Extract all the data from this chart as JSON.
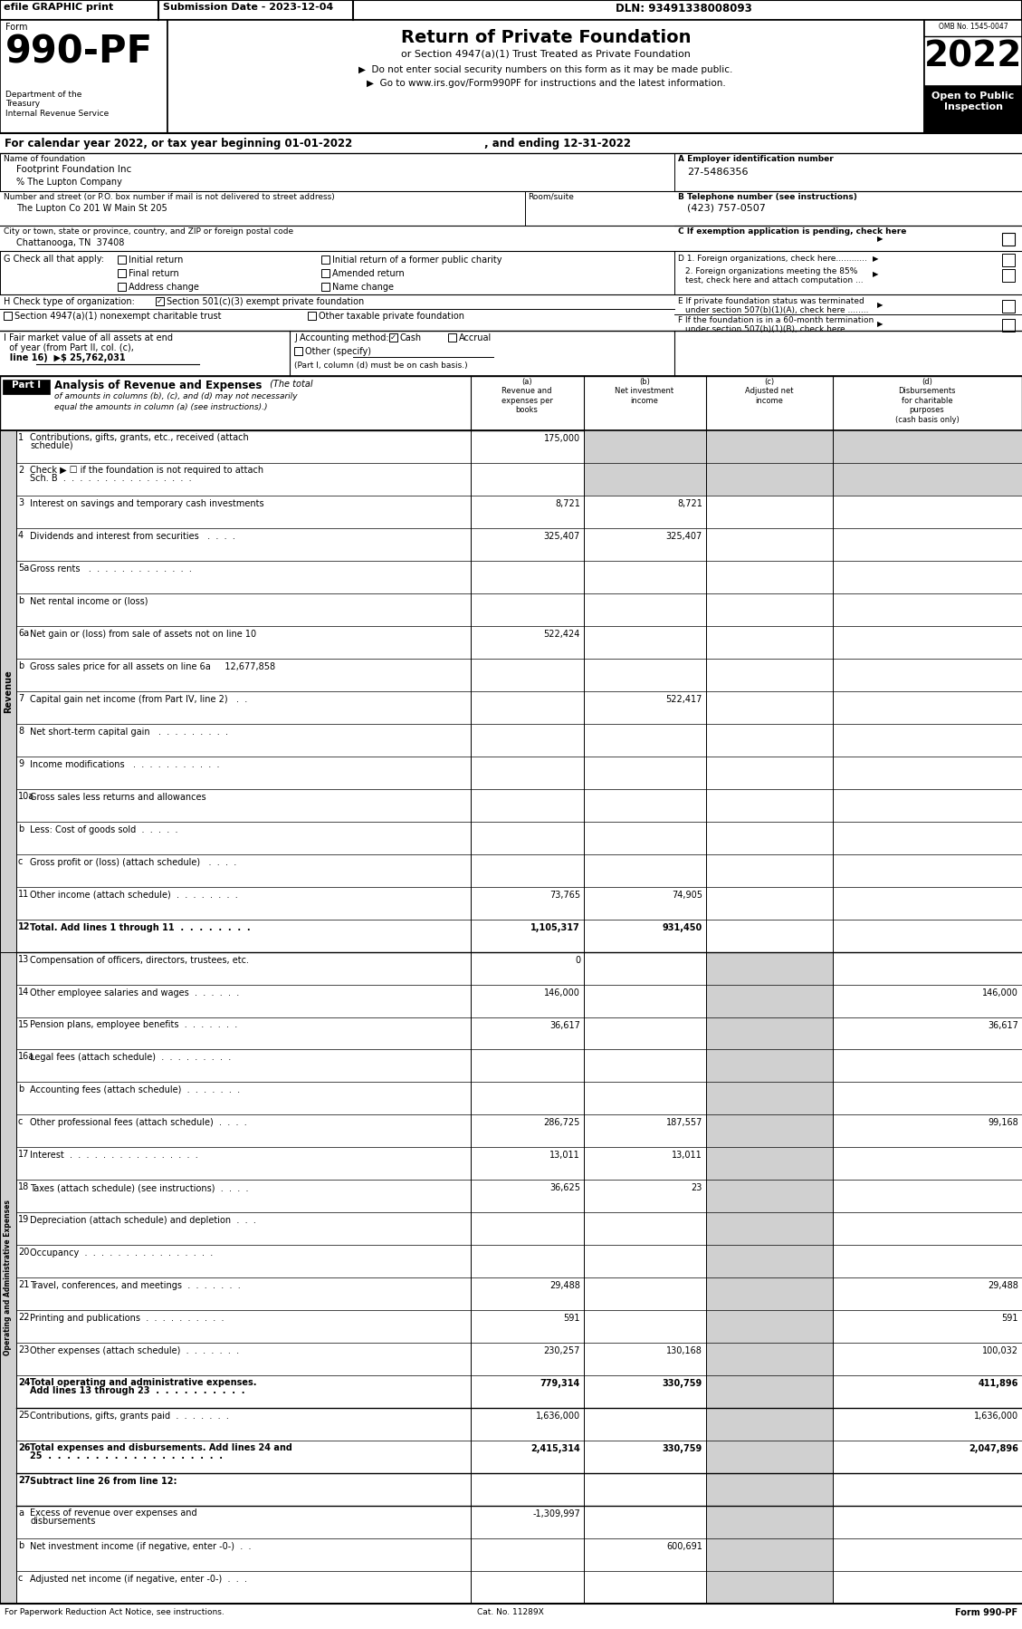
{
  "header_bar": {
    "efile": "efile GRAPHIC print",
    "submission": "Submission Date - 2023-12-04",
    "dln": "DLN: 93491338008093"
  },
  "form_number": "990-PF",
  "form_label": "Form",
  "title": "Return of Private Foundation",
  "subtitle": "or Section 4947(a)(1) Trust Treated as Private Foundation",
  "bullet1": "▶  Do not enter social security numbers on this form as it may be made public.",
  "bullet2": "▶  Go to www.irs.gov/Form990PF for instructions and the latest information.",
  "year": "2022",
  "omb": "OMB No. 1545-0047",
  "calendar_line": "For calendar year 2022, or tax year beginning 01-01-2022",
  "calendar_end": ", and ending 12-31-2022",
  "name_label": "Name of foundation",
  "name_value": "Footprint Foundation Inc",
  "care_of": "% The Lupton Company",
  "street_label": "Number and street (or P.O. box number if mail is not delivered to street address)",
  "street_value": "The Lupton Co 201 W Main St 205",
  "room_label": "Room/suite",
  "city_label": "City or town, state or province, country, and ZIP or foreign postal code",
  "city_value": "Chattanooga, TN  37408",
  "ein_label": "A Employer identification number",
  "ein_value": "27-5486356",
  "phone_label": "B Telephone number (see instructions)",
  "phone_value": "(423) 757-0507",
  "exemption_label": "C If exemption application is pending, check here",
  "footer_left": "For Paperwork Reduction Act Notice, see instructions.",
  "footer_cat": "Cat. No. 11289X",
  "footer_right": "Form 990-PF",
  "rows": [
    {
      "num": "1",
      "label": "Contributions, gifts, grants, etc., received (attach\nschedule)",
      "a": "175,000",
      "b": "",
      "c": "",
      "d": "",
      "gray_bcd": true
    },
    {
      "num": "2",
      "label": "Check ▶ ☐ if the foundation is not required to attach\nSch. B  .  .  .  .  .  .  .  .  .  .  .  .  .  .  .  .",
      "a": "",
      "b": "",
      "c": "",
      "d": "",
      "gray_bcd": true
    },
    {
      "num": "3",
      "label": "Interest on savings and temporary cash investments",
      "a": "8,721",
      "b": "8,721",
      "c": "",
      "d": "",
      "gray_bcd": false
    },
    {
      "num": "4",
      "label": "Dividends and interest from securities   .  .  .  .",
      "a": "325,407",
      "b": "325,407",
      "c": "",
      "d": "",
      "gray_bcd": false
    },
    {
      "num": "5a",
      "label": "Gross rents   .  .  .  .  .  .  .  .  .  .  .  .  .",
      "a": "",
      "b": "",
      "c": "",
      "d": "",
      "gray_bcd": false
    },
    {
      "num": "b",
      "label": "Net rental income or (loss)",
      "a": "",
      "b": "",
      "c": "",
      "d": "",
      "gray_bcd": false
    },
    {
      "num": "6a",
      "label": "Net gain or (loss) from sale of assets not on line 10",
      "a": "522,424",
      "b": "",
      "c": "",
      "d": "",
      "gray_bcd": false
    },
    {
      "num": "b",
      "label": "Gross sales price for all assets on line 6a     12,677,858",
      "a": "",
      "b": "",
      "c": "",
      "d": "",
      "gray_bcd": false
    },
    {
      "num": "7",
      "label": "Capital gain net income (from Part IV, line 2)   .  .",
      "a": "",
      "b": "522,417",
      "c": "",
      "d": "",
      "gray_bcd": false
    },
    {
      "num": "8",
      "label": "Net short-term capital gain   .  .  .  .  .  .  .  .  .",
      "a": "",
      "b": "",
      "c": "",
      "d": "",
      "gray_bcd": false
    },
    {
      "num": "9",
      "label": "Income modifications   .  .  .  .  .  .  .  .  .  .  .",
      "a": "",
      "b": "",
      "c": "",
      "d": "",
      "gray_bcd": false
    },
    {
      "num": "10a",
      "label": "Gross sales less returns and allowances",
      "a": "",
      "b": "",
      "c": "",
      "d": "",
      "gray_bcd": false
    },
    {
      "num": "b",
      "label": "Less: Cost of goods sold  .  .  .  .  .",
      "a": "",
      "b": "",
      "c": "",
      "d": "",
      "gray_bcd": false
    },
    {
      "num": "c",
      "label": "Gross profit or (loss) (attach schedule)   .  .  .  .",
      "a": "",
      "b": "",
      "c": "",
      "d": "",
      "gray_bcd": false
    },
    {
      "num": "11",
      "label": "Other income (attach schedule)  .  .  .  .  .  .  .  .",
      "a": "73,765",
      "b": "74,905",
      "c": "",
      "d": "",
      "gray_bcd": false
    },
    {
      "num": "12",
      "label": "Total. Add lines 1 through 11  .  .  .  .  .  .  .  .",
      "a": "1,105,317",
      "b": "931,450",
      "c": "",
      "d": "",
      "bold": true,
      "gray_bcd": false
    },
    {
      "num": "13",
      "label": "Compensation of officers, directors, trustees, etc.",
      "a": "0",
      "b": "",
      "c": "",
      "d": "",
      "gray_c": true
    },
    {
      "num": "14",
      "label": "Other employee salaries and wages  .  .  .  .  .  .",
      "a": "146,000",
      "b": "",
      "c": "",
      "d": "146,000",
      "gray_c": true
    },
    {
      "num": "15",
      "label": "Pension plans, employee benefits  .  .  .  .  .  .  .",
      "a": "36,617",
      "b": "",
      "c": "",
      "d": "36,617",
      "gray_c": true
    },
    {
      "num": "16a",
      "label": "Legal fees (attach schedule)  .  .  .  .  .  .  .  .  .",
      "a": "",
      "b": "",
      "c": "",
      "d": "",
      "gray_c": true
    },
    {
      "num": "b",
      "label": "Accounting fees (attach schedule)  .  .  .  .  .  .  .",
      "a": "",
      "b": "",
      "c": "",
      "d": "",
      "gray_c": true
    },
    {
      "num": "c",
      "label": "Other professional fees (attach schedule)  .  .  .  .",
      "a": "286,725",
      "b": "187,557",
      "c": "",
      "d": "99,168",
      "gray_c": true
    },
    {
      "num": "17",
      "label": "Interest  .  .  .  .  .  .  .  .  .  .  .  .  .  .  .  .",
      "a": "13,011",
      "b": "13,011",
      "c": "",
      "d": "",
      "gray_c": true
    },
    {
      "num": "18",
      "label": "Taxes (attach schedule) (see instructions)  .  .  .  .",
      "a": "36,625",
      "b": "23",
      "c": "",
      "d": "",
      "gray_c": true
    },
    {
      "num": "19",
      "label": "Depreciation (attach schedule) and depletion  .  .  .",
      "a": "",
      "b": "",
      "c": "",
      "d": "",
      "gray_c": true
    },
    {
      "num": "20",
      "label": "Occupancy  .  .  .  .  .  .  .  .  .  .  .  .  .  .  .  .",
      "a": "",
      "b": "",
      "c": "",
      "d": "",
      "gray_c": true
    },
    {
      "num": "21",
      "label": "Travel, conferences, and meetings  .  .  .  .  .  .  .",
      "a": "29,488",
      "b": "",
      "c": "",
      "d": "29,488",
      "gray_c": true
    },
    {
      "num": "22",
      "label": "Printing and publications  .  .  .  .  .  .  .  .  .  .",
      "a": "591",
      "b": "",
      "c": "",
      "d": "591",
      "gray_c": true
    },
    {
      "num": "23",
      "label": "Other expenses (attach schedule)  .  .  .  .  .  .  .",
      "a": "230,257",
      "b": "130,168",
      "c": "",
      "d": "100,032",
      "gray_c": true
    },
    {
      "num": "24",
      "label": "Total operating and administrative expenses.\nAdd lines 13 through 23  .  .  .  .  .  .  .  .  .  .",
      "a": "779,314",
      "b": "330,759",
      "c": "",
      "d": "411,896",
      "bold": true,
      "gray_c": true
    },
    {
      "num": "25",
      "label": "Contributions, gifts, grants paid  .  .  .  .  .  .  .",
      "a": "1,636,000",
      "b": "",
      "c": "",
      "d": "1,636,000",
      "gray_c": true
    },
    {
      "num": "26",
      "label": "Total expenses and disbursements. Add lines 24 and\n25  .  .  .  .  .  .  .  .  .  .  .  .  .  .  .  .  .  .  .",
      "a": "2,415,314",
      "b": "330,759",
      "c": "",
      "d": "2,047,896",
      "bold": true,
      "gray_c": true
    },
    {
      "num": "27",
      "label": "Subtract line 26 from line 12:",
      "a": "",
      "b": "",
      "c": "",
      "d": "",
      "bold": true,
      "gray_c": true
    },
    {
      "num": "a",
      "label": "Excess of revenue over expenses and\ndisbursements",
      "a": "-1,309,997",
      "b": "",
      "c": "",
      "d": "",
      "gray_c": true
    },
    {
      "num": "b",
      "label": "Net investment income (if negative, enter -0-)  .  .",
      "a": "",
      "b": "600,691",
      "c": "",
      "d": "",
      "gray_c": true
    },
    {
      "num": "c",
      "label": "Adjusted net income (if negative, enter -0-)  .  .  .",
      "a": "",
      "b": "",
      "c": "",
      "d": "",
      "gray_c": true
    }
  ]
}
